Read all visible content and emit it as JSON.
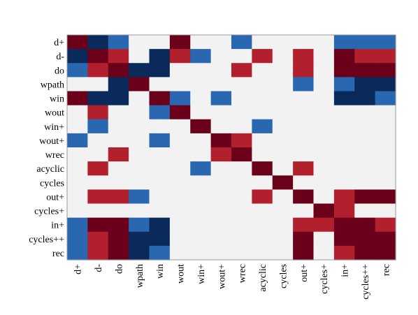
{
  "chart_data": {
    "type": "heatmap",
    "title": "",
    "xlabel": "",
    "ylabel": "",
    "legend": "none",
    "grid": false,
    "row_labels": [
      "d+",
      "d-",
      "do",
      "wpath",
      "win",
      "wout",
      "win+",
      "wout+",
      "wrec",
      "acyclic",
      "cycles",
      "out+",
      "cycles+",
      "in+",
      "cycles++",
      "rec"
    ],
    "col_labels": [
      "d+",
      "d-",
      "do",
      "wpath",
      "win",
      "wout",
      "win+",
      "wout+",
      "wrec",
      "acyclic",
      "cycles",
      "out+",
      "cycles+",
      "in+",
      "cycles++",
      "rec"
    ],
    "value_range": [
      -1,
      1
    ],
    "palette": {
      "-1": "#0a2a5c",
      "-0.5": "#2a67b1",
      "0": "#f2f2f2",
      "0.5": "#b21f2d",
      "1": "#6a0019"
    },
    "frame_color": "#9a9a9a",
    "matrix": [
      [
        1,
        -1,
        -0.5,
        0,
        0,
        1,
        0,
        0,
        -0.5,
        0,
        0,
        0,
        0,
        -0.5,
        -0.5,
        -0.5
      ],
      [
        -1,
        1,
        0.5,
        0,
        -1,
        0.5,
        -0.5,
        0,
        0,
        0.5,
        0,
        0.5,
        0,
        1,
        0.5,
        0.5
      ],
      [
        -0.5,
        0.5,
        1,
        -1,
        -1,
        0,
        0,
        0,
        0.5,
        0,
        0,
        0.5,
        0,
        1,
        1,
        1
      ],
      [
        0,
        0,
        -1,
        1,
        0,
        0,
        0,
        0,
        0,
        0,
        0,
        -0.5,
        0,
        -0.5,
        -1,
        -1
      ],
      [
        1,
        -1,
        -1,
        0,
        1,
        -0.5,
        0,
        -0.5,
        0,
        0,
        0,
        0,
        0,
        -1,
        -1,
        -0.5
      ],
      [
        0,
        0.5,
        0,
        0,
        -0.5,
        1,
        0,
        0,
        0,
        0,
        0,
        0,
        0,
        0,
        0,
        0
      ],
      [
        0,
        -0.5,
        0,
        0,
        0,
        0,
        1,
        0,
        0,
        -0.5,
        0,
        0,
        0,
        0,
        0,
        0
      ],
      [
        -0.5,
        0,
        0,
        0,
        -0.5,
        0,
        0,
        1,
        0.5,
        0,
        0,
        0,
        0,
        0,
        0,
        0
      ],
      [
        0,
        0,
        0.5,
        0,
        0,
        0,
        0,
        0.5,
        1,
        0,
        0,
        0,
        0,
        0,
        0,
        0
      ],
      [
        0,
        0.5,
        0,
        0,
        0,
        0,
        -0.5,
        0,
        0,
        1,
        0,
        0.5,
        0,
        0,
        0,
        0
      ],
      [
        0,
        0,
        0,
        0,
        0,
        0,
        0,
        0,
        0,
        0,
        1,
        0,
        0,
        0,
        0,
        0
      ],
      [
        0,
        0.5,
        0.5,
        -0.5,
        0,
        0,
        0,
        0,
        0,
        0.5,
        0,
        1,
        0,
        0.5,
        1,
        1
      ],
      [
        0,
        0,
        0,
        0,
        0,
        0,
        0,
        0,
        0,
        0,
        0,
        0,
        1,
        0.5,
        0,
        0
      ],
      [
        -0.5,
        1,
        1,
        -0.5,
        -1,
        0,
        0,
        0,
        0,
        0,
        0,
        0.5,
        0.5,
        1,
        1,
        0.5
      ],
      [
        -0.5,
        0.5,
        1,
        -1,
        -1,
        0,
        0,
        0,
        0,
        0,
        0,
        1,
        0,
        1,
        1,
        1
      ],
      [
        -0.5,
        0.5,
        1,
        -1,
        -0.5,
        0,
        0,
        0,
        0,
        0,
        0,
        1,
        0,
        0.5,
        1,
        1
      ]
    ]
  }
}
